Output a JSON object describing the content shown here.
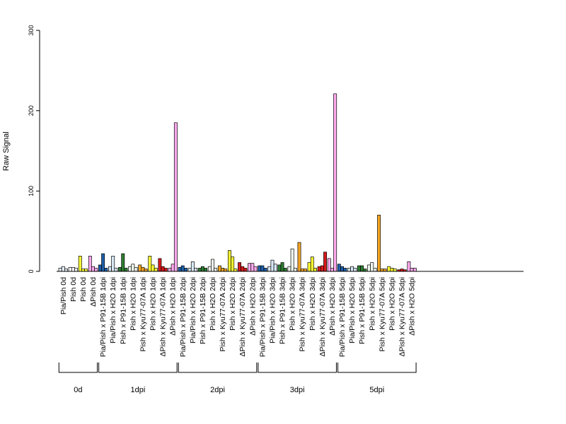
{
  "chart_data": {
    "type": "bar",
    "ylabel": "Raw Signal",
    "ylim": [
      0,
      300
    ],
    "yticks": [
      0,
      100,
      200,
      300
    ],
    "grid": false,
    "categories": [
      {
        "label": "Pia/Pish 0d",
        "color": "#e6f0fa",
        "values": [
          4,
          6,
          3
        ]
      },
      {
        "label": "Pish 0d",
        "color": "#ffffff",
        "values": [
          5,
          5,
          4
        ]
      },
      {
        "label": "Pish 0d",
        "color": "#ffff33",
        "values": [
          19,
          3,
          3
        ]
      },
      {
        "label": "ΔPish 0d",
        "color": "#ffaaee",
        "values": [
          19,
          6,
          4
        ]
      },
      {
        "label": "Pia/Pish x P91-15B 1dpi",
        "color": "#1f5fa8",
        "values": [
          8,
          22,
          4
        ]
      },
      {
        "label": "Pia/Pish x H2O 1dpi",
        "color": "#d8e8f6",
        "values": [
          6,
          19,
          4
        ]
      },
      {
        "label": "Pish x P91-15B 1dpi",
        "color": "#2e7d32",
        "values": [
          5,
          22,
          4
        ]
      },
      {
        "label": "Pish x H2O 1dpi",
        "color": "#f0f8ee",
        "values": [
          6,
          9,
          5
        ]
      },
      {
        "label": "Pish x Kyu77-07A 1dpi",
        "color": "#f5a623",
        "values": [
          8,
          5,
          3
        ]
      },
      {
        "label": "Pish x H2O 1dpi",
        "color": "#ffff33",
        "values": [
          19,
          8,
          4
        ]
      },
      {
        "label": "ΔPish x Kyu77-07A 1dpi",
        "color": "#d7191c",
        "values": [
          16,
          6,
          4
        ]
      },
      {
        "label": "ΔPish x H2O 1dpi",
        "color": "#ffaaee",
        "values": [
          4,
          9,
          185
        ]
      },
      {
        "label": "Pia/Pish x P91-15B 2dpi",
        "color": "#1f5fa8",
        "values": [
          5,
          7,
          4
        ]
      },
      {
        "label": "Pia/Pish x H2O 2dpi",
        "color": "#d8e8f6",
        "values": [
          4,
          12,
          4
        ]
      },
      {
        "label": "Pish x P91-15B 2dpi",
        "color": "#2e7d32",
        "values": [
          4,
          6,
          4
        ]
      },
      {
        "label": "Pish x H2O 2dpi",
        "color": "#f0f8ee",
        "values": [
          6,
          15,
          4
        ]
      },
      {
        "label": "Pish x Kyu77-07A 2dpi",
        "color": "#f5a623",
        "values": [
          7,
          4,
          3
        ]
      },
      {
        "label": "Pish x H2O 2dpi",
        "color": "#ffff33",
        "values": [
          26,
          18,
          3
        ]
      },
      {
        "label": "ΔPish x Kyu77-07A 2dpi",
        "color": "#d7191c",
        "values": [
          11,
          6,
          4
        ]
      },
      {
        "label": "ΔPish x H2O 2dpi",
        "color": "#ffaaee",
        "values": [
          10,
          10,
          6
        ]
      },
      {
        "label": "Pia/Pish x P91-15B 3dpi",
        "color": "#1f5fa8",
        "values": [
          7,
          7,
          4
        ]
      },
      {
        "label": "Pia/Pish x H2O 3dpi",
        "color": "#d8e8f6",
        "values": [
          6,
          14,
          9
        ]
      },
      {
        "label": "Pish x P91-15B 3dpi",
        "color": "#2e7d32",
        "values": [
          8,
          11,
          4
        ]
      },
      {
        "label": "Pish x H2O 3dpi",
        "color": "#f0f8ee",
        "values": [
          6,
          28,
          4
        ]
      },
      {
        "label": "Pish x Kyu77-07A 3dpi",
        "color": "#f5a623",
        "values": [
          36,
          3,
          3
        ]
      },
      {
        "label": "Pish x H2O 3dpi",
        "color": "#ffff33",
        "values": [
          11,
          18,
          4
        ]
      },
      {
        "label": "ΔPish x Kyu77-07A 3dpi",
        "color": "#d7191c",
        "values": [
          6,
          7,
          24
        ]
      },
      {
        "label": "ΔPish x H2O 3dpi",
        "color": "#ffaaee",
        "values": [
          16,
          4,
          221
        ]
      },
      {
        "label": "Pia/Pish x P91-15B 5dpi",
        "color": "#1f5fa8",
        "values": [
          9,
          6,
          4
        ]
      },
      {
        "label": "Pia/Pish x H2O 5dpi",
        "color": "#d8e8f6",
        "values": [
          4,
          6,
          4
        ]
      },
      {
        "label": "Pish x P91-15B 5dpi",
        "color": "#2e7d32",
        "values": [
          7,
          7,
          3
        ]
      },
      {
        "label": "Pish x H2O 5dpi",
        "color": "#f0f8ee",
        "values": [
          8,
          11,
          4
        ]
      },
      {
        "label": "Pish x Kyu77-07A 5dpi",
        "color": "#f5a623",
        "values": [
          70,
          3,
          3
        ]
      },
      {
        "label": "Pish x H2O 5dpi",
        "color": "#ffff33",
        "values": [
          6,
          4,
          3
        ]
      },
      {
        "label": "ΔPish x Kyu77-07A 5dpi",
        "color": "#d7191c",
        "values": [
          2,
          3,
          2
        ]
      },
      {
        "label": "ΔPish x H2O 5dpi",
        "color": "#ffaaee",
        "values": [
          12,
          4,
          4
        ]
      }
    ],
    "groups": [
      {
        "label": "0d",
        "start": 0,
        "end": 3
      },
      {
        "label": "1dpi",
        "start": 4,
        "end": 11
      },
      {
        "label": "2dpi",
        "start": 12,
        "end": 19
      },
      {
        "label": "3dpi",
        "start": 20,
        "end": 27
      },
      {
        "label": "5dpi",
        "start": 28,
        "end": 35
      }
    ]
  }
}
